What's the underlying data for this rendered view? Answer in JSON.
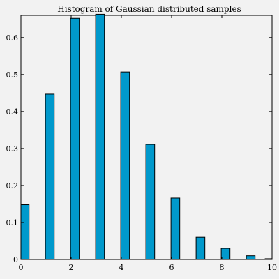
{
  "chart_data": {
    "type": "bar",
    "title": "Histogram of Gaussian distributed samples",
    "xlabel": "",
    "ylabel": "",
    "xlim": [
      0,
      10
    ],
    "ylim": [
      0,
      0.66
    ],
    "x_ticks": [
      "0",
      "2",
      "4",
      "6",
      "8",
      "10"
    ],
    "x_tick_values": [
      0,
      2,
      4,
      6,
      8,
      10
    ],
    "y_ticks": [
      "0",
      "0.1",
      "0.2",
      "0.3",
      "0.4",
      "0.5",
      "0.6"
    ],
    "y_tick_values": [
      0,
      0.1,
      0.2,
      0.3,
      0.4,
      0.5,
      0.6
    ],
    "bar_width": 0.35,
    "x": [
      0.15,
      1.15,
      2.15,
      3.15,
      4.15,
      5.15,
      6.15,
      7.15,
      8.15,
      9.15,
      9.9
    ],
    "values": [
      0.148,
      0.447,
      0.652,
      0.663,
      0.507,
      0.311,
      0.166,
      0.06,
      0.03,
      0.01,
      0.002
    ],
    "grid": false,
    "legend": "none",
    "colors": {
      "bar_fill": "#0099cc",
      "bar_stroke": "#000000",
      "background": "#f2f2f2",
      "axis": "#000000"
    }
  }
}
